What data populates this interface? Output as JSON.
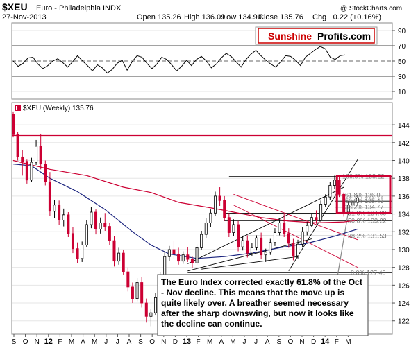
{
  "header": {
    "symbol": "$XEU",
    "name": "Euro - Philadelphia INDX",
    "date": "27-Nov-2013",
    "open": "Open 135.26",
    "high": "High 136.09",
    "low": "Low 134.90",
    "close": "Close 135.76",
    "chg": "Chg +0.22 (+0.16%)",
    "copyright": "@ StockCharts.com"
  },
  "logo": {
    "part1": "Sunshine",
    "part2": "Profits.com"
  },
  "rsi_panel": {
    "tick_labels": [
      "90",
      "70",
      "50",
      "30",
      "10"
    ],
    "ticks": [
      90,
      70,
      50,
      30,
      10
    ],
    "series": [
      50,
      43,
      47,
      54,
      55,
      46,
      40,
      44,
      50,
      53,
      48,
      42,
      49,
      57,
      50,
      44,
      37,
      45,
      41,
      34,
      39,
      47,
      51,
      38,
      49,
      57,
      55,
      47,
      40,
      46,
      55,
      52,
      45,
      37,
      43,
      51,
      44,
      52,
      56,
      50,
      41,
      46,
      54,
      60,
      56,
      49,
      42,
      52,
      59,
      64,
      57,
      51,
      46,
      42,
      49,
      57,
      56,
      51,
      44,
      55,
      60,
      65,
      69,
      66,
      55,
      52,
      57,
      58
    ]
  },
  "price_panel": {
    "legend": "$XEU (Weekly) 135.76",
    "tick_labels": [
      "144",
      "142",
      "140",
      "138",
      "136",
      "134",
      "132",
      "130",
      "128",
      "126",
      "124",
      "122"
    ],
    "ticks": [
      144,
      142,
      140,
      138,
      136,
      134,
      132,
      130,
      128,
      126,
      124,
      122
    ]
  },
  "x_labels": [
    "S",
    "O",
    "N",
    "12",
    "F",
    "M",
    "A",
    "M",
    "J",
    "J",
    "A",
    "S",
    "O",
    "N",
    "D",
    "13",
    "F",
    "M",
    "A",
    "M",
    "J",
    "J",
    "A",
    "S",
    "O",
    "N",
    "D",
    "14",
    "F",
    "M"
  ],
  "fib_labels": [
    "100.0% 138.22",
    "61.8% 136.09",
    "50.0% 135.43",
    "38.2% 134.77",
    "61.8% 134.09",
    "50.0% 133.22",
    "38.2% 131.53",
    "0.0% 127.40"
  ],
  "annotation": {
    "text": "The Euro Index corrected exactly 61.8% of the Oct - Nov decline. This means that the move up is quite likely over. A breather seemed necessary after the sharp downswing, but now it looks like the decline can continue."
  },
  "colors": {
    "up": "#000000",
    "down": "#cc0033",
    "ma_short": "#cc0033",
    "ma_long": "#1a237e",
    "resistance": "#cc0033",
    "logo_red": "#cc0000"
  },
  "chart_data": {
    "type": "candlestick",
    "title": "$XEU Euro - Philadelphia INDX",
    "ylim": [
      120.5,
      146.5
    ],
    "x_range": [
      "2011-09",
      "2014-03"
    ],
    "ohlc": [
      [
        145.2,
        145.5,
        142.6,
        142.9
      ],
      [
        142.9,
        143.2,
        140.0,
        140.4
      ],
      [
        140.4,
        141.2,
        138.3,
        139.9
      ],
      [
        139.9,
        140.1,
        137.4,
        137.8
      ],
      [
        137.8,
        140.3,
        137.6,
        139.8
      ],
      [
        139.8,
        142.3,
        139.5,
        141.6
      ],
      [
        141.6,
        143.0,
        139.0,
        139.6
      ],
      [
        139.6,
        140.0,
        137.2,
        137.6
      ],
      [
        137.6,
        138.7,
        133.8,
        134.3
      ],
      [
        134.3,
        135.6,
        133.5,
        135.0
      ],
      [
        135.0,
        135.5,
        132.8,
        133.3
      ],
      [
        133.3,
        134.6,
        132.6,
        133.9
      ],
      [
        133.9,
        134.2,
        131.4,
        131.8
      ],
      [
        131.8,
        132.5,
        129.6,
        130.1
      ],
      [
        130.1,
        130.8,
        128.5,
        129.0
      ],
      [
        129.0,
        130.9,
        128.6,
        130.5
      ],
      [
        130.5,
        133.3,
        130.3,
        132.8
      ],
      [
        132.8,
        134.8,
        132.4,
        134.2
      ],
      [
        134.2,
        134.5,
        131.7,
        132.3
      ],
      [
        132.3,
        133.6,
        131.8,
        133.0
      ],
      [
        133.0,
        134.1,
        132.1,
        132.6
      ],
      [
        132.6,
        133.0,
        130.5,
        131.0
      ],
      [
        131.0,
        131.5,
        128.1,
        128.7
      ],
      [
        128.7,
        130.2,
        128.3,
        129.6
      ],
      [
        129.6,
        130.0,
        127.2,
        127.5
      ],
      [
        127.5,
        128.0,
        125.3,
        125.8
      ],
      [
        125.8,
        126.3,
        124.0,
        124.5
      ],
      [
        124.5,
        126.8,
        124.2,
        126.3
      ],
      [
        126.3,
        126.9,
        123.5,
        124.0
      ],
      [
        124.0,
        124.5,
        121.8,
        122.5
      ],
      [
        122.5,
        123.3,
        121.4,
        122.9
      ],
      [
        122.9,
        125.1,
        122.6,
        124.6
      ],
      [
        124.6,
        127.5,
        124.3,
        127.1
      ],
      [
        127.1,
        129.8,
        126.6,
        129.2
      ],
      [
        129.2,
        130.4,
        128.7,
        130.0
      ],
      [
        130.0,
        131.0,
        128.9,
        129.5
      ],
      [
        129.5,
        130.2,
        128.3,
        128.7
      ],
      [
        128.7,
        129.8,
        128.4,
        129.4
      ],
      [
        129.4,
        130.3,
        128.6,
        128.9
      ],
      [
        128.9,
        129.2,
        127.9,
        128.5
      ],
      [
        128.5,
        130.6,
        128.3,
        130.2
      ],
      [
        130.2,
        132.1,
        130.0,
        131.7
      ],
      [
        131.7,
        133.5,
        131.3,
        133.0
      ],
      [
        133.0,
        134.5,
        132.5,
        134.1
      ],
      [
        134.1,
        136.5,
        133.8,
        136.0
      ],
      [
        136.0,
        137.0,
        134.9,
        135.5
      ],
      [
        135.5,
        136.0,
        133.2,
        133.6
      ],
      [
        133.6,
        134.1,
        131.4,
        131.9
      ],
      [
        131.9,
        133.4,
        131.5,
        132.8
      ],
      [
        132.8,
        133.2,
        129.8,
        130.3
      ],
      [
        130.3,
        131.5,
        129.9,
        131.0
      ],
      [
        131.0,
        131.6,
        129.1,
        129.6
      ],
      [
        129.6,
        130.7,
        129.3,
        130.2
      ],
      [
        130.2,
        131.6,
        129.9,
        131.3
      ],
      [
        131.3,
        131.9,
        128.9,
        129.4
      ],
      [
        129.4,
        130.1,
        128.6,
        129.7
      ],
      [
        129.7,
        131.2,
        129.4,
        130.8
      ],
      [
        130.8,
        132.4,
        130.4,
        131.9
      ],
      [
        131.9,
        133.4,
        131.6,
        133.0
      ],
      [
        133.0,
        134.0,
        131.4,
        131.8
      ],
      [
        131.8,
        132.4,
        130.2,
        130.7
      ],
      [
        130.7,
        131.2,
        128.8,
        129.3
      ],
      [
        129.3,
        131.1,
        129.0,
        130.6
      ],
      [
        130.6,
        132.5,
        130.3,
        132.0
      ],
      [
        132.0,
        133.1,
        131.6,
        132.7
      ],
      [
        132.7,
        134.0,
        132.5,
        133.6
      ],
      [
        133.6,
        134.4,
        132.9,
        133.3
      ],
      [
        133.3,
        135.5,
        133.1,
        135.1
      ],
      [
        135.1,
        136.2,
        134.8,
        135.9
      ],
      [
        135.9,
        137.6,
        135.6,
        137.2
      ],
      [
        137.2,
        138.3,
        136.8,
        137.8
      ],
      [
        137.8,
        138.2,
        135.9,
        136.2
      ],
      [
        136.2,
        136.4,
        133.7,
        134.2
      ],
      [
        134.2,
        135.4,
        133.9,
        135.0
      ],
      [
        135.0,
        135.6,
        134.5,
        135.3
      ],
      [
        135.3,
        136.1,
        134.9,
        135.8
      ]
    ],
    "fib_levels": [
      {
        "label": "100.0% 138.22",
        "value": 138.22
      },
      {
        "label": "61.8% 136.09",
        "value": 136.09
      },
      {
        "label": "50.0% 135.43",
        "value": 135.43
      },
      {
        "label": "38.2% 134.77",
        "value": 134.77
      },
      {
        "label": "61.8% 134.09",
        "value": 134.09
      },
      {
        "label": "50.0% 133.22",
        "value": 133.22
      },
      {
        "label": "38.2% 131.53",
        "value": 131.53
      },
      {
        "label": "0.0% 127.40",
        "value": 127.4
      }
    ],
    "horizontal_line": 142.8,
    "ma_short": [
      [
        0,
        140.0
      ],
      [
        8,
        139.0
      ],
      [
        16,
        138.3
      ],
      [
        24,
        137.0
      ],
      [
        30,
        136.4
      ],
      [
        36,
        135.3
      ],
      [
        44,
        134.6
      ],
      [
        48,
        134.2
      ],
      [
        54,
        133.6
      ],
      [
        60,
        133.2
      ],
      [
        66,
        133.0
      ],
      [
        72,
        133.1
      ],
      [
        75,
        133.3
      ]
    ],
    "ma_long": [
      [
        0,
        139.6
      ],
      [
        4,
        139.4
      ],
      [
        8,
        138.0
      ],
      [
        14,
        136.5
      ],
      [
        20,
        134.5
      ],
      [
        26,
        132.0
      ],
      [
        30,
        130.5
      ],
      [
        34,
        129.5
      ],
      [
        40,
        129.0
      ],
      [
        46,
        129.2
      ],
      [
        52,
        129.6
      ],
      [
        58,
        130.2
      ],
      [
        64,
        130.7
      ],
      [
        70,
        131.5
      ],
      [
        75,
        132.3
      ]
    ]
  }
}
